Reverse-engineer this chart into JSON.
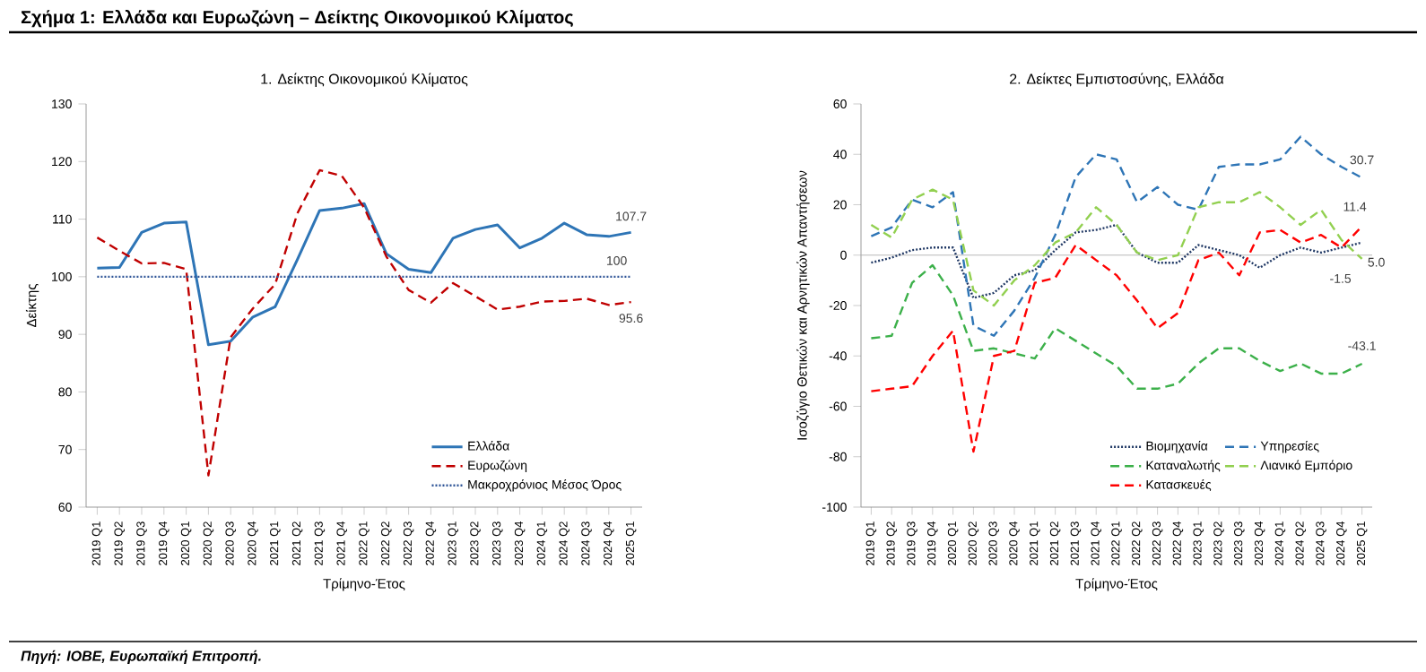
{
  "chart_data": [
    {
      "type": "line",
      "title": "1. Δείκτης Οικονομικού Κλίματος",
      "xlabel": "Τρίμηνο-Έτος",
      "ylabel": "Δείκτης",
      "categories": [
        "2019 Q1",
        "2019 Q2",
        "2019 Q3",
        "2019 Q4",
        "2020 Q1",
        "2020 Q2",
        "2020 Q3",
        "2020 Q4",
        "2021 Q1",
        "2021 Q2",
        "2021 Q3",
        "2021 Q4",
        "2022 Q1",
        "2022 Q2",
        "2022 Q3",
        "2022 Q4",
        "2023 Q1",
        "2023 Q2",
        "2023 Q3",
        "2023 Q4",
        "2024 Q1",
        "2024 Q2",
        "2024 Q3",
        "2024 Q4",
        "2025 Q1"
      ],
      "series": [
        {
          "name": "Ελλάδα",
          "color": "#2e75b6",
          "line_style": "solid",
          "values": [
            101.5,
            101.6,
            107.7,
            109.3,
            109.5,
            88.2,
            88.8,
            93,
            94.8,
            103,
            111.5,
            111.9,
            112.7,
            104,
            101.3,
            100.7,
            106.7,
            108.2,
            109,
            105,
            106.7,
            109.3,
            107.3,
            107,
            107.7
          ],
          "value_labels": [
            null,
            null,
            null,
            null,
            null,
            null,
            null,
            null,
            null,
            null,
            null,
            null,
            null,
            null,
            null,
            null,
            null,
            null,
            null,
            null,
            null,
            null,
            null,
            null,
            "107.7"
          ]
        },
        {
          "name": "Ευρωζώνη",
          "color": "#c00000",
          "line_style": "dashed",
          "values": [
            106.8,
            104.5,
            102.3,
            102.4,
            101.3,
            65.5,
            89.5,
            94.5,
            98.7,
            111,
            118.5,
            117.5,
            112,
            103.5,
            97.7,
            95.5,
            98.9,
            96.6,
            94.3,
            94.8,
            95.7,
            95.8,
            96.2,
            95.1,
            95.6
          ],
          "value_labels": [
            null,
            null,
            null,
            null,
            null,
            null,
            null,
            null,
            null,
            null,
            null,
            null,
            null,
            null,
            null,
            null,
            null,
            null,
            null,
            null,
            null,
            null,
            null,
            null,
            "95.6"
          ]
        },
        {
          "name": "Μακροχρόνιος Μέσος Όρος",
          "color": "#2f5597",
          "line_style": "dotted",
          "values": [
            100,
            100,
            100,
            100,
            100,
            100,
            100,
            100,
            100,
            100,
            100,
            100,
            100,
            100,
            100,
            100,
            100,
            100,
            100,
            100,
            100,
            100,
            100,
            100,
            100
          ],
          "value_labels": [
            null,
            null,
            null,
            null,
            null,
            null,
            null,
            null,
            null,
            null,
            null,
            null,
            null,
            null,
            null,
            null,
            null,
            null,
            null,
            null,
            null,
            null,
            null,
            null,
            "100"
          ]
        }
      ],
      "ylim": [
        60,
        130
      ],
      "yticks": [
        60,
        70,
        80,
        90,
        100,
        110,
        120,
        130
      ],
      "legend": "bottom right",
      "marker": "none",
      "annotations": [
        "Σχήμα 1: Ελλάδα και Ευρωζώνη – Δείκτης Οικονομικού Κλίματος"
      ]
    },
    {
      "type": "line",
      "title": "2. Δείκτες Εμπιστοσύνης, Ελλάδα",
      "xlabel": "Τρίμηνο-Έτος",
      "ylabel": "Ισοζύγιο Θετικών και Αρνητικών Απαντήσεων",
      "categories": [
        "2019 Q1",
        "2019 Q2",
        "2019 Q3",
        "2019 Q4",
        "2020 Q1",
        "2020 Q2",
        "2020 Q3",
        "2020 Q4",
        "2021 Q1",
        "2021 Q2",
        "2021 Q3",
        "2021 Q4",
        "2022 Q1",
        "2022 Q2",
        "2022 Q3",
        "2022 Q4",
        "2023 Q1",
        "2023 Q2",
        "2023 Q3",
        "2023 Q4",
        "2024 Q1",
        "2024 Q2",
        "2024 Q3",
        "2024 Q4",
        "2025 Q1"
      ],
      "series": [
        {
          "name": "Βιομηχανία",
          "color": "#203864",
          "line_style": "dotted",
          "values": [
            -3,
            -1,
            2,
            3,
            3,
            -17,
            -15,
            -8,
            -6,
            2,
            9,
            10,
            12,
            1,
            -3,
            -3,
            4,
            2,
            0,
            -5,
            0,
            3,
            1,
            3,
            5.0
          ],
          "value_labels": [
            null,
            null,
            null,
            null,
            null,
            null,
            null,
            null,
            null,
            null,
            null,
            null,
            null,
            null,
            null,
            null,
            null,
            null,
            null,
            null,
            null,
            null,
            null,
            null,
            "5.0"
          ]
        },
        {
          "name": "Υπηρεσίες",
          "color": "#2e75b6",
          "line_style": "dashed",
          "values": [
            7.5,
            11,
            22,
            19,
            25,
            -28,
            -32,
            -22,
            -9,
            8,
            31,
            40,
            38,
            21,
            27,
            20,
            18,
            35,
            36,
            36,
            38,
            47,
            40,
            35,
            30.7
          ],
          "value_labels": [
            null,
            null,
            null,
            null,
            null,
            null,
            null,
            null,
            null,
            null,
            null,
            null,
            null,
            null,
            null,
            null,
            null,
            null,
            null,
            null,
            null,
            null,
            null,
            null,
            "30.7"
          ]
        },
        {
          "name": "Καταναλωτής",
          "color": "#3cb04a",
          "line_style": "dashed",
          "values": [
            -33,
            -32,
            -11,
            -4,
            -16,
            -38,
            -37,
            -39,
            -41,
            -29,
            -34,
            -39,
            -44,
            -53,
            -53,
            -51,
            -43,
            -37,
            -37,
            -42,
            -46,
            -43,
            -47,
            -47,
            -43.1
          ],
          "value_labels": [
            null,
            null,
            null,
            null,
            null,
            null,
            null,
            null,
            null,
            null,
            null,
            null,
            null,
            null,
            null,
            null,
            null,
            null,
            null,
            null,
            null,
            null,
            null,
            null,
            "-43.1"
          ]
        },
        {
          "name": "Λιανικό Εμπόριο",
          "color": "#92d050",
          "line_style": "dashed",
          "values": [
            12,
            7,
            22,
            26,
            22,
            -14,
            -20,
            -10,
            -4,
            5,
            9,
            19,
            12,
            1,
            -2,
            0,
            19,
            21,
            21,
            25,
            19,
            12,
            18,
            6,
            -1.5
          ],
          "value_labels": [
            null,
            null,
            null,
            null,
            null,
            null,
            null,
            null,
            null,
            null,
            null,
            null,
            null,
            null,
            null,
            null,
            null,
            null,
            null,
            null,
            null,
            null,
            null,
            null,
            "-1.5"
          ]
        },
        {
          "name": "Κατασκευές",
          "color": "#ff0000",
          "line_style": "dashed",
          "values": [
            -54,
            -53,
            -52,
            -40,
            -30,
            -78,
            -40,
            -38,
            -11,
            -9,
            4,
            -2,
            -8,
            -18,
            -29,
            -23,
            -2,
            1,
            -8,
            9,
            10,
            5,
            8,
            3,
            11.4
          ],
          "value_labels": [
            null,
            null,
            null,
            null,
            null,
            null,
            null,
            null,
            null,
            null,
            null,
            null,
            null,
            null,
            null,
            null,
            null,
            null,
            null,
            null,
            null,
            null,
            null,
            null,
            "11.4"
          ]
        }
      ],
      "ylim": [
        -100,
        60
      ],
      "yticks": [
        -100,
        -80,
        -60,
        -40,
        -20,
        0,
        20,
        40,
        60
      ],
      "legend": "bottom right",
      "marker": "none",
      "ref_lines": [
        {
          "axis": "y",
          "value": 0,
          "color": "#a6a6a6"
        }
      ],
      "annotations": [
        "Πηγή: ΙΟΒΕ, Ευρωπαϊκή Επιτροπή."
      ]
    }
  ]
}
